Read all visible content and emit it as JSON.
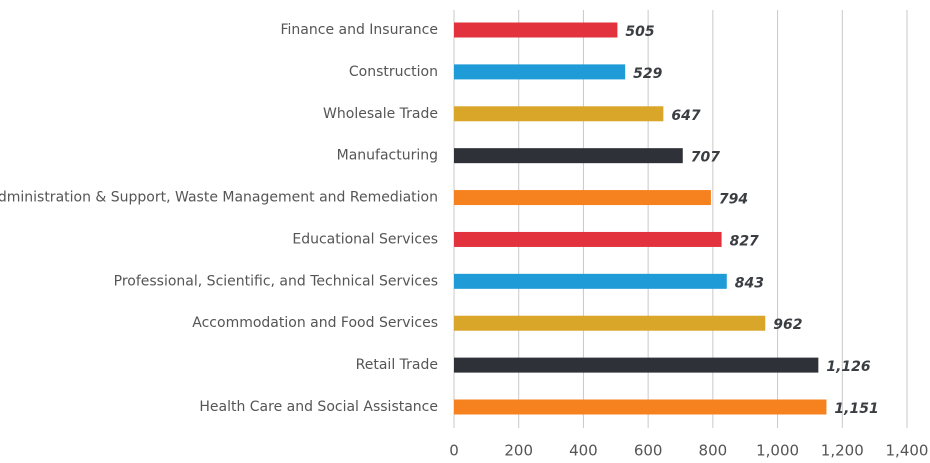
{
  "chart_data": {
    "type": "bar",
    "orientation": "horizontal",
    "categories": [
      "Finance and Insurance",
      "Construction",
      "Wholesale Trade",
      "Manufacturing",
      "Administration & Support, Waste Management and Remediation",
      "Educational Services",
      "Professional, Scientific, and Technical Services",
      "Accommodation and Food Services",
      "Retail Trade",
      "Health Care and Social Assistance"
    ],
    "values": [
      505,
      529,
      647,
      707,
      794,
      827,
      843,
      962,
      1126,
      1151
    ],
    "value_labels": [
      "505",
      "529",
      "647",
      "707",
      "794",
      "827",
      "843",
      "962",
      "1,126",
      "1,151"
    ],
    "colors": [
      "#e1323d",
      "#1f9bd7",
      "#d9a62a",
      "#2e3238",
      "#f6821f",
      "#e1323d",
      "#1f9bd7",
      "#d9a62a",
      "#2e3238",
      "#f6821f"
    ],
    "xlim": [
      0,
      1400
    ],
    "xticks": [
      0,
      200,
      400,
      600,
      800,
      {
        "value": 1000,
        "label": "1,000"
      },
      {
        "value": 1200,
        "label": "1,200"
      },
      {
        "value": 1400,
        "label": "1,400"
      }
    ],
    "grid": true
  }
}
